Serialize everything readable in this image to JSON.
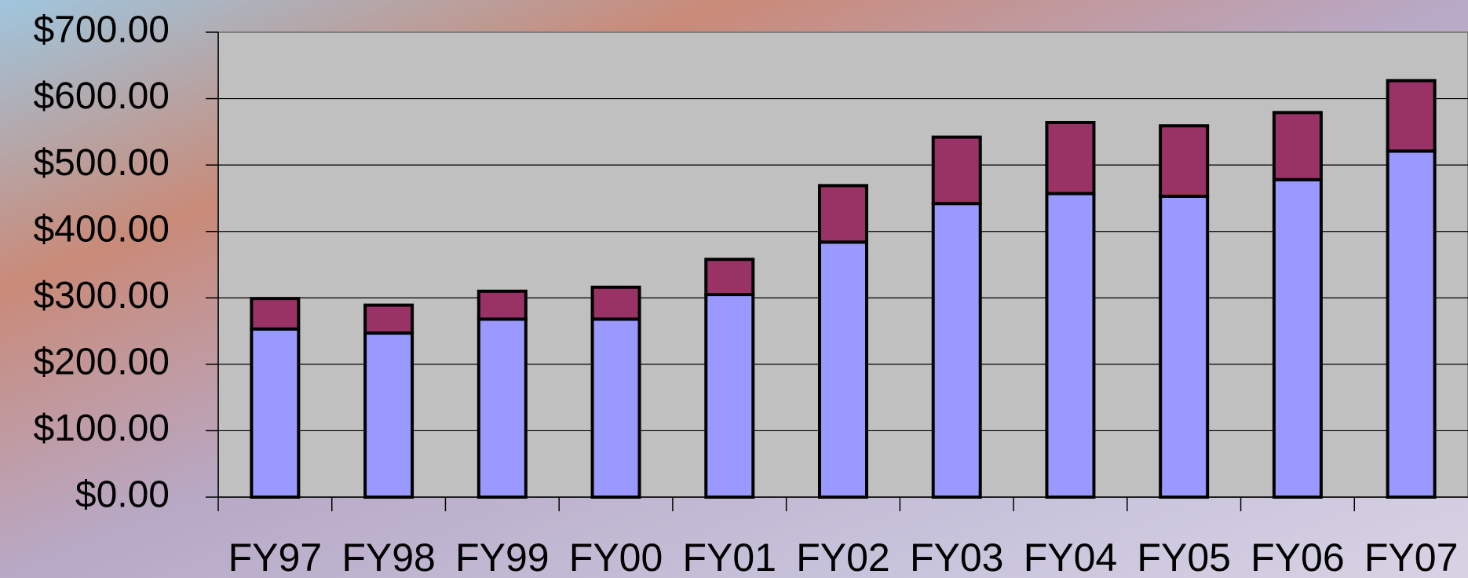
{
  "chart_data": {
    "type": "stacked_bar",
    "categories": [
      "FY97",
      "FY98",
      "FY99",
      "FY00",
      "FY01",
      "FY02",
      "FY03",
      "FY04",
      "FY05",
      "FY06",
      "FY07"
    ],
    "series": [
      {
        "color": "#9999ff",
        "values": [
          253,
          247,
          268,
          268,
          305,
          384,
          442,
          457,
          453,
          478,
          521
        ]
      },
      {
        "color": "#993366",
        "values": [
          46,
          42,
          42,
          48,
          53,
          85,
          100,
          107,
          106,
          101,
          106
        ]
      }
    ],
    "ylim": [
      0,
      700
    ],
    "yticks": [
      {
        "value": 0,
        "label": "$0.00"
      },
      {
        "value": 100,
        "label": "$100.00"
      },
      {
        "value": 200,
        "label": "$200.00"
      },
      {
        "value": 300,
        "label": "$300.00"
      },
      {
        "value": 400,
        "label": "$400.00"
      },
      {
        "value": 500,
        "label": "$500.00"
      },
      {
        "value": 600,
        "label": "$600.00"
      },
      {
        "value": 700,
        "label": "$700.00"
      }
    ],
    "grid": true
  }
}
